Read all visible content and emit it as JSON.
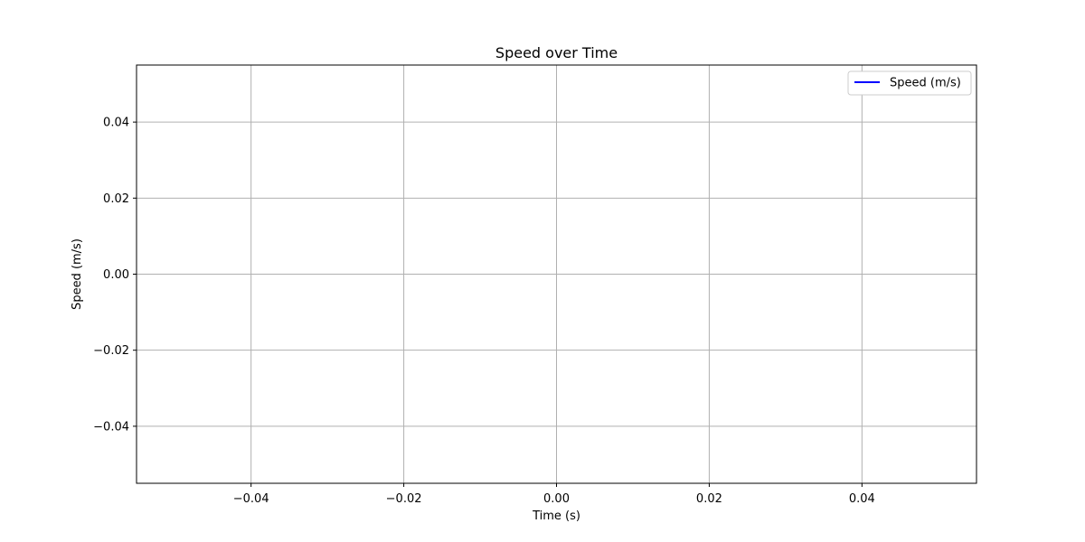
{
  "chart_data": {
    "type": "line",
    "title": "Speed over Time",
    "xlabel": "Time (s)",
    "ylabel": "Speed (m/s)",
    "xlim": [
      -0.055,
      0.055
    ],
    "ylim": [
      -0.055,
      0.055
    ],
    "x_ticks": [
      -0.04,
      -0.02,
      0.0,
      0.02,
      0.04
    ],
    "x_tick_labels": [
      "−0.04",
      "−0.02",
      "0.00",
      "0.02",
      "0.04"
    ],
    "y_ticks": [
      -0.04,
      -0.02,
      0.0,
      0.02,
      0.04
    ],
    "y_tick_labels": [
      "−0.04",
      "−0.02",
      "0.00",
      "0.02",
      "0.04"
    ],
    "grid": true,
    "legend_position": "top-right",
    "series": [
      {
        "name": "Speed (m/s)",
        "color": "#0000ff",
        "x": [],
        "y": []
      }
    ]
  }
}
